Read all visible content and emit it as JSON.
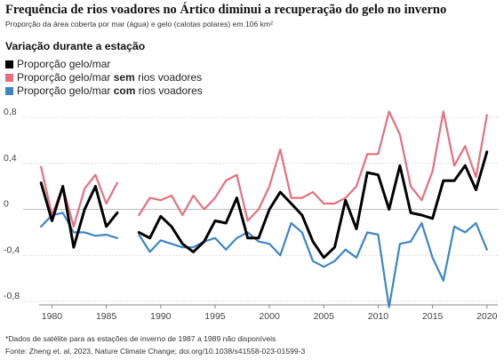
{
  "title": "Frequência de rios voadores no Ártico diminui a recuperação do gelo no inverno",
  "subtitle": "Proporção da área coberta por mar (água) e gelo (calotas polares) em 106 km²",
  "legend": {
    "title": "Variação durante a estação",
    "items": [
      {
        "pre": "Proporção gelo/mar",
        "bold": "",
        "post": "",
        "color": "#000000"
      },
      {
        "pre": "Proporção gelo/mar ",
        "bold": "sem",
        "post": " rios voadores",
        "color": "#e8707e"
      },
      {
        "pre": "Proporção gelo/mar ",
        "bold": "com",
        "post": " rios voadores",
        "color": "#3d86c6"
      }
    ]
  },
  "note": "*Dados de satélite para as estações de inverno de 1987 a 1989 não disponíveis",
  "source": "Fonte: Zheng et. al, 2023, Nature Climate Change; doi.org/10.1038/s41558-023-01599-3",
  "chart_data": {
    "type": "line",
    "xlim": [
      1978,
      2021
    ],
    "ylim": [
      -0.8,
      0.8
    ],
    "x_ticks": [
      1980,
      1985,
      1990,
      1995,
      2000,
      2005,
      2010,
      2015,
      2020
    ],
    "y_ticks": [
      {
        "value": 0.8,
        "label": "0,8"
      },
      {
        "value": 0.4,
        "label": "0,4"
      },
      {
        "value": 0,
        "label": "0"
      },
      {
        "value": -0.4,
        "label": "-0,4"
      },
      {
        "value": -0.8,
        "label": "-0,8"
      }
    ],
    "gap": [
      1987,
      1988
    ],
    "x": [
      1979,
      1980,
      1981,
      1982,
      1983,
      1984,
      1985,
      1986,
      1988,
      1989,
      1990,
      1991,
      1992,
      1993,
      1994,
      1995,
      1996,
      1997,
      1998,
      1999,
      2000,
      2001,
      2002,
      2003,
      2004,
      2005,
      2006,
      2007,
      2008,
      2009,
      2010,
      2011,
      2012,
      2013,
      2014,
      2015,
      2016,
      2017,
      2018,
      2019,
      2020
    ],
    "series": [
      {
        "name": "Proporção gelo/mar",
        "color": "#000000",
        "values": [
          0.23,
          -0.1,
          0.2,
          -0.33,
          0.0,
          0.2,
          -0.15,
          -0.03,
          -0.2,
          -0.25,
          -0.06,
          -0.15,
          -0.3,
          -0.37,
          -0.28,
          -0.1,
          -0.12,
          0.1,
          -0.25,
          -0.25,
          0.0,
          0.15,
          0.05,
          -0.05,
          -0.28,
          -0.42,
          -0.33,
          0.08,
          -0.17,
          0.32,
          0.3,
          0.0,
          0.38,
          -0.03,
          -0.05,
          -0.08,
          0.25,
          0.25,
          0.38,
          0.17,
          0.5
        ]
      },
      {
        "name": "Proporção gelo/mar sem rios voadores",
        "color": "#e8707e",
        "values": [
          0.37,
          -0.05,
          0.2,
          -0.15,
          0.18,
          0.3,
          0.05,
          0.23,
          -0.05,
          0.1,
          0.08,
          0.12,
          -0.05,
          0.12,
          0.0,
          0.1,
          0.25,
          0.3,
          -0.1,
          0.0,
          0.2,
          0.52,
          0.1,
          0.1,
          0.15,
          0.05,
          0.05,
          0.1,
          0.2,
          0.48,
          0.48,
          0.85,
          0.65,
          0.2,
          0.08,
          0.33,
          0.85,
          0.38,
          0.55,
          0.28,
          0.82
        ]
      },
      {
        "name": "Proporção gelo/mar com rios voadores",
        "color": "#3d86c6",
        "values": [
          -0.15,
          -0.05,
          -0.03,
          -0.2,
          -0.2,
          -0.23,
          -0.22,
          -0.25,
          -0.22,
          -0.37,
          -0.27,
          -0.3,
          -0.33,
          -0.33,
          -0.28,
          -0.25,
          -0.35,
          -0.25,
          -0.2,
          -0.28,
          -0.3,
          -0.4,
          -0.12,
          -0.2,
          -0.45,
          -0.5,
          -0.45,
          -0.35,
          -0.42,
          -0.2,
          -0.22,
          -0.85,
          -0.3,
          -0.28,
          -0.12,
          -0.42,
          -0.62,
          -0.15,
          -0.2,
          -0.12,
          -0.35
        ]
      }
    ]
  }
}
